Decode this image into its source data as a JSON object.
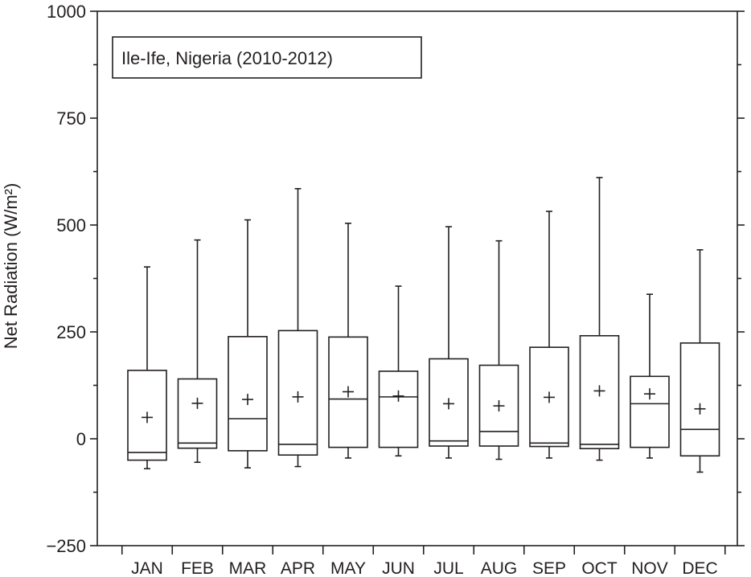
{
  "chart_data": {
    "type": "box",
    "annotation": "Ile-Ife, Nigeria (2010-2012)",
    "ylabel": "Net Radiation (W/m²)",
    "xlabel": "",
    "ylim": [
      -250,
      1000
    ],
    "yticks": [
      -250,
      0,
      250,
      500,
      750,
      1000
    ],
    "ytick_labels": [
      "−250",
      "0",
      "250",
      "500",
      "750",
      "1000"
    ],
    "categories": [
      "JAN",
      "FEB",
      "MAR",
      "APR",
      "MAY",
      "JUN",
      "JUL",
      "AUG",
      "SEP",
      "OCT",
      "NOV",
      "DEC"
    ],
    "boxes": [
      {
        "month": "JAN",
        "whisker_low": -70,
        "q1": -50,
        "median": -32,
        "q3": 160,
        "whisker_high": 402,
        "mean": 50
      },
      {
        "month": "FEB",
        "whisker_low": -55,
        "q1": -22,
        "median": -10,
        "q3": 140,
        "whisker_high": 465,
        "mean": 83
      },
      {
        "month": "MAR",
        "whisker_low": -68,
        "q1": -28,
        "median": 47,
        "q3": 239,
        "whisker_high": 512,
        "mean": 92
      },
      {
        "month": "APR",
        "whisker_low": -65,
        "q1": -38,
        "median": -13,
        "q3": 253,
        "whisker_high": 585,
        "mean": 98
      },
      {
        "month": "MAY",
        "whisker_low": -45,
        "q1": -20,
        "median": 93,
        "q3": 238,
        "whisker_high": 504,
        "mean": 110
      },
      {
        "month": "JUN",
        "whisker_low": -40,
        "q1": -20,
        "median": 98,
        "q3": 158,
        "whisker_high": 357,
        "mean": 100
      },
      {
        "month": "JUL",
        "whisker_low": -45,
        "q1": -17,
        "median": -5,
        "q3": 187,
        "whisker_high": 496,
        "mean": 82
      },
      {
        "month": "AUG",
        "whisker_low": -48,
        "q1": -17,
        "median": 17,
        "q3": 172,
        "whisker_high": 463,
        "mean": 77
      },
      {
        "month": "SEP",
        "whisker_low": -45,
        "q1": -18,
        "median": -10,
        "q3": 214,
        "whisker_high": 532,
        "mean": 97
      },
      {
        "month": "OCT",
        "whisker_low": -50,
        "q1": -23,
        "median": -13,
        "q3": 241,
        "whisker_high": 611,
        "mean": 112
      },
      {
        "month": "NOV",
        "whisker_low": -45,
        "q1": -20,
        "median": 82,
        "q3": 146,
        "whisker_high": 338,
        "mean": 105
      },
      {
        "month": "DEC",
        "whisker_low": -78,
        "q1": -40,
        "median": 22,
        "q3": 224,
        "whisker_high": 442,
        "mean": 70
      }
    ],
    "grid": false,
    "legend_placement": "top-left"
  }
}
